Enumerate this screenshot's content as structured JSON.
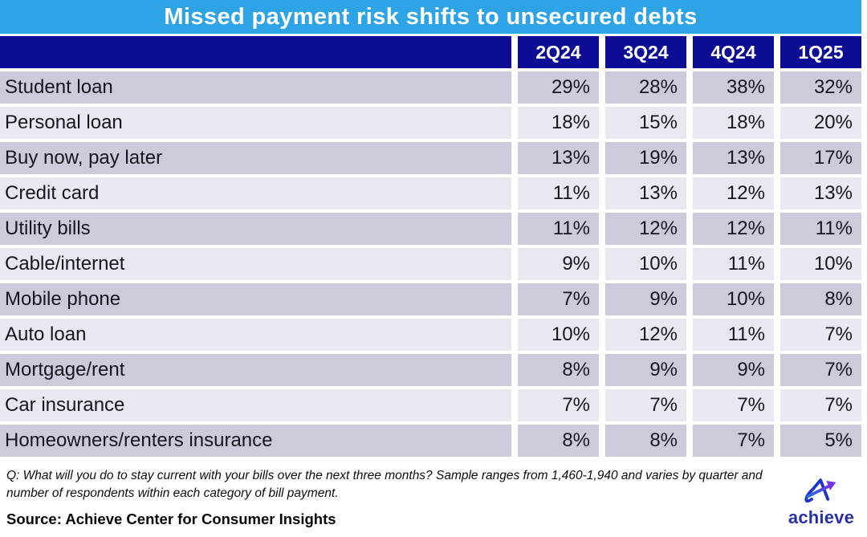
{
  "title": "Missed payment risk shifts to unsecured debts",
  "chart_data": {
    "type": "table",
    "unit": "%",
    "columns": [
      "2Q24",
      "3Q24",
      "4Q24",
      "1Q25"
    ],
    "rows": [
      {
        "label": "Student loan",
        "values": [
          29,
          28,
          38,
          32
        ]
      },
      {
        "label": "Personal loan",
        "values": [
          18,
          15,
          18,
          20
        ]
      },
      {
        "label": "Buy now, pay later",
        "values": [
          13,
          19,
          13,
          17
        ]
      },
      {
        "label": "Credit card",
        "values": [
          11,
          13,
          12,
          13
        ]
      },
      {
        "label": "Utility bills",
        "values": [
          11,
          12,
          12,
          11
        ]
      },
      {
        "label": "Cable/internet",
        "values": [
          9,
          10,
          11,
          10
        ]
      },
      {
        "label": "Mobile phone",
        "values": [
          7,
          9,
          10,
          8
        ]
      },
      {
        "label": "Auto loan",
        "values": [
          10,
          12,
          11,
          7
        ]
      },
      {
        "label": "Mortgage/rent",
        "values": [
          8,
          9,
          9,
          7
        ]
      },
      {
        "label": "Car insurance",
        "values": [
          7,
          7,
          7,
          7
        ]
      },
      {
        "label": "Homeowners/renters insurance",
        "values": [
          8,
          8,
          7,
          5
        ]
      }
    ],
    "title": "Missed payment risk shifts to unsecured debts",
    "legend_position": "none",
    "grid": "white separators between cells"
  },
  "footnote_lines": [
    "Q: What will you do to stay current with your bills over the next three months? Sample ranges from 1,460-1,940 and varies by quarter and",
    "number of respondents within each category of bill payment."
  ],
  "source": "Source: Achieve Center for Consumer Insights",
  "logo": {
    "wordmark": "achieve"
  },
  "colors": {
    "title_bar": "#2EA4E6",
    "header_navy": "#0D0C94",
    "row_dark": "#CDCADC",
    "row_light": "#E9E8F0",
    "text_dark": "#16161E",
    "wordmark": "#2730A5",
    "arrow_blue": "#1E6FE0",
    "arrow_purple": "#7433EA"
  }
}
